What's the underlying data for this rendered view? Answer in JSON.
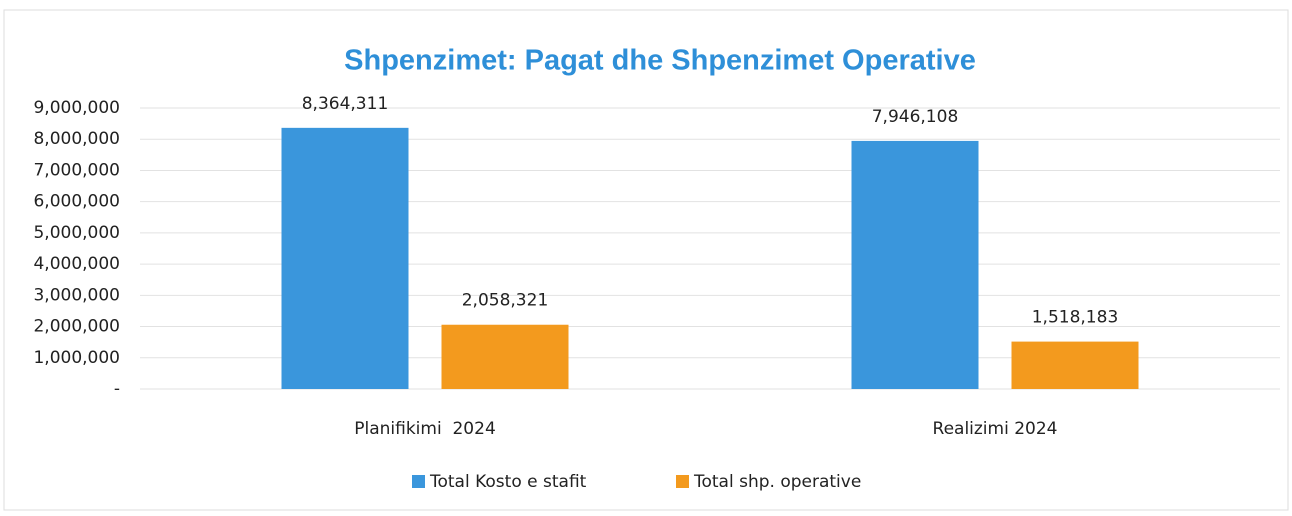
{
  "chart_data": {
    "type": "bar",
    "title": "Shpenzimet: Pagat dhe Shpenzimet Operative",
    "categories": [
      "Planifikimi  2024",
      "Realizimi 2024"
    ],
    "series": [
      {
        "name": "Total Kosto e stafit",
        "color": "#3a96dc",
        "values": [
          8364311,
          7946108
        ],
        "value_labels": [
          "8,364,311",
          "7,946,108"
        ]
      },
      {
        "name": "Total shp. operative",
        "color": "#f39a1e",
        "values": [
          2058321,
          1518183
        ],
        "value_labels": [
          "2,058,321",
          "1,518,183"
        ]
      }
    ],
    "ylim": [
      0,
      9000000
    ],
    "yticks": [
      {
        "value": 0,
        "label": "-"
      },
      {
        "value": 1000000,
        "label": "1,000,000"
      },
      {
        "value": 2000000,
        "label": "2,000,000"
      },
      {
        "value": 3000000,
        "label": "3,000,000"
      },
      {
        "value": 4000000,
        "label": "4,000,000"
      },
      {
        "value": 5000000,
        "label": "5,000,000"
      },
      {
        "value": 6000000,
        "label": "6,000,000"
      },
      {
        "value": 7000000,
        "label": "7,000,000"
      },
      {
        "value": 8000000,
        "label": "8,000,000"
      },
      {
        "value": 9000000,
        "label": "9,000,000"
      }
    ],
    "grid": true,
    "legend": "bottom"
  }
}
